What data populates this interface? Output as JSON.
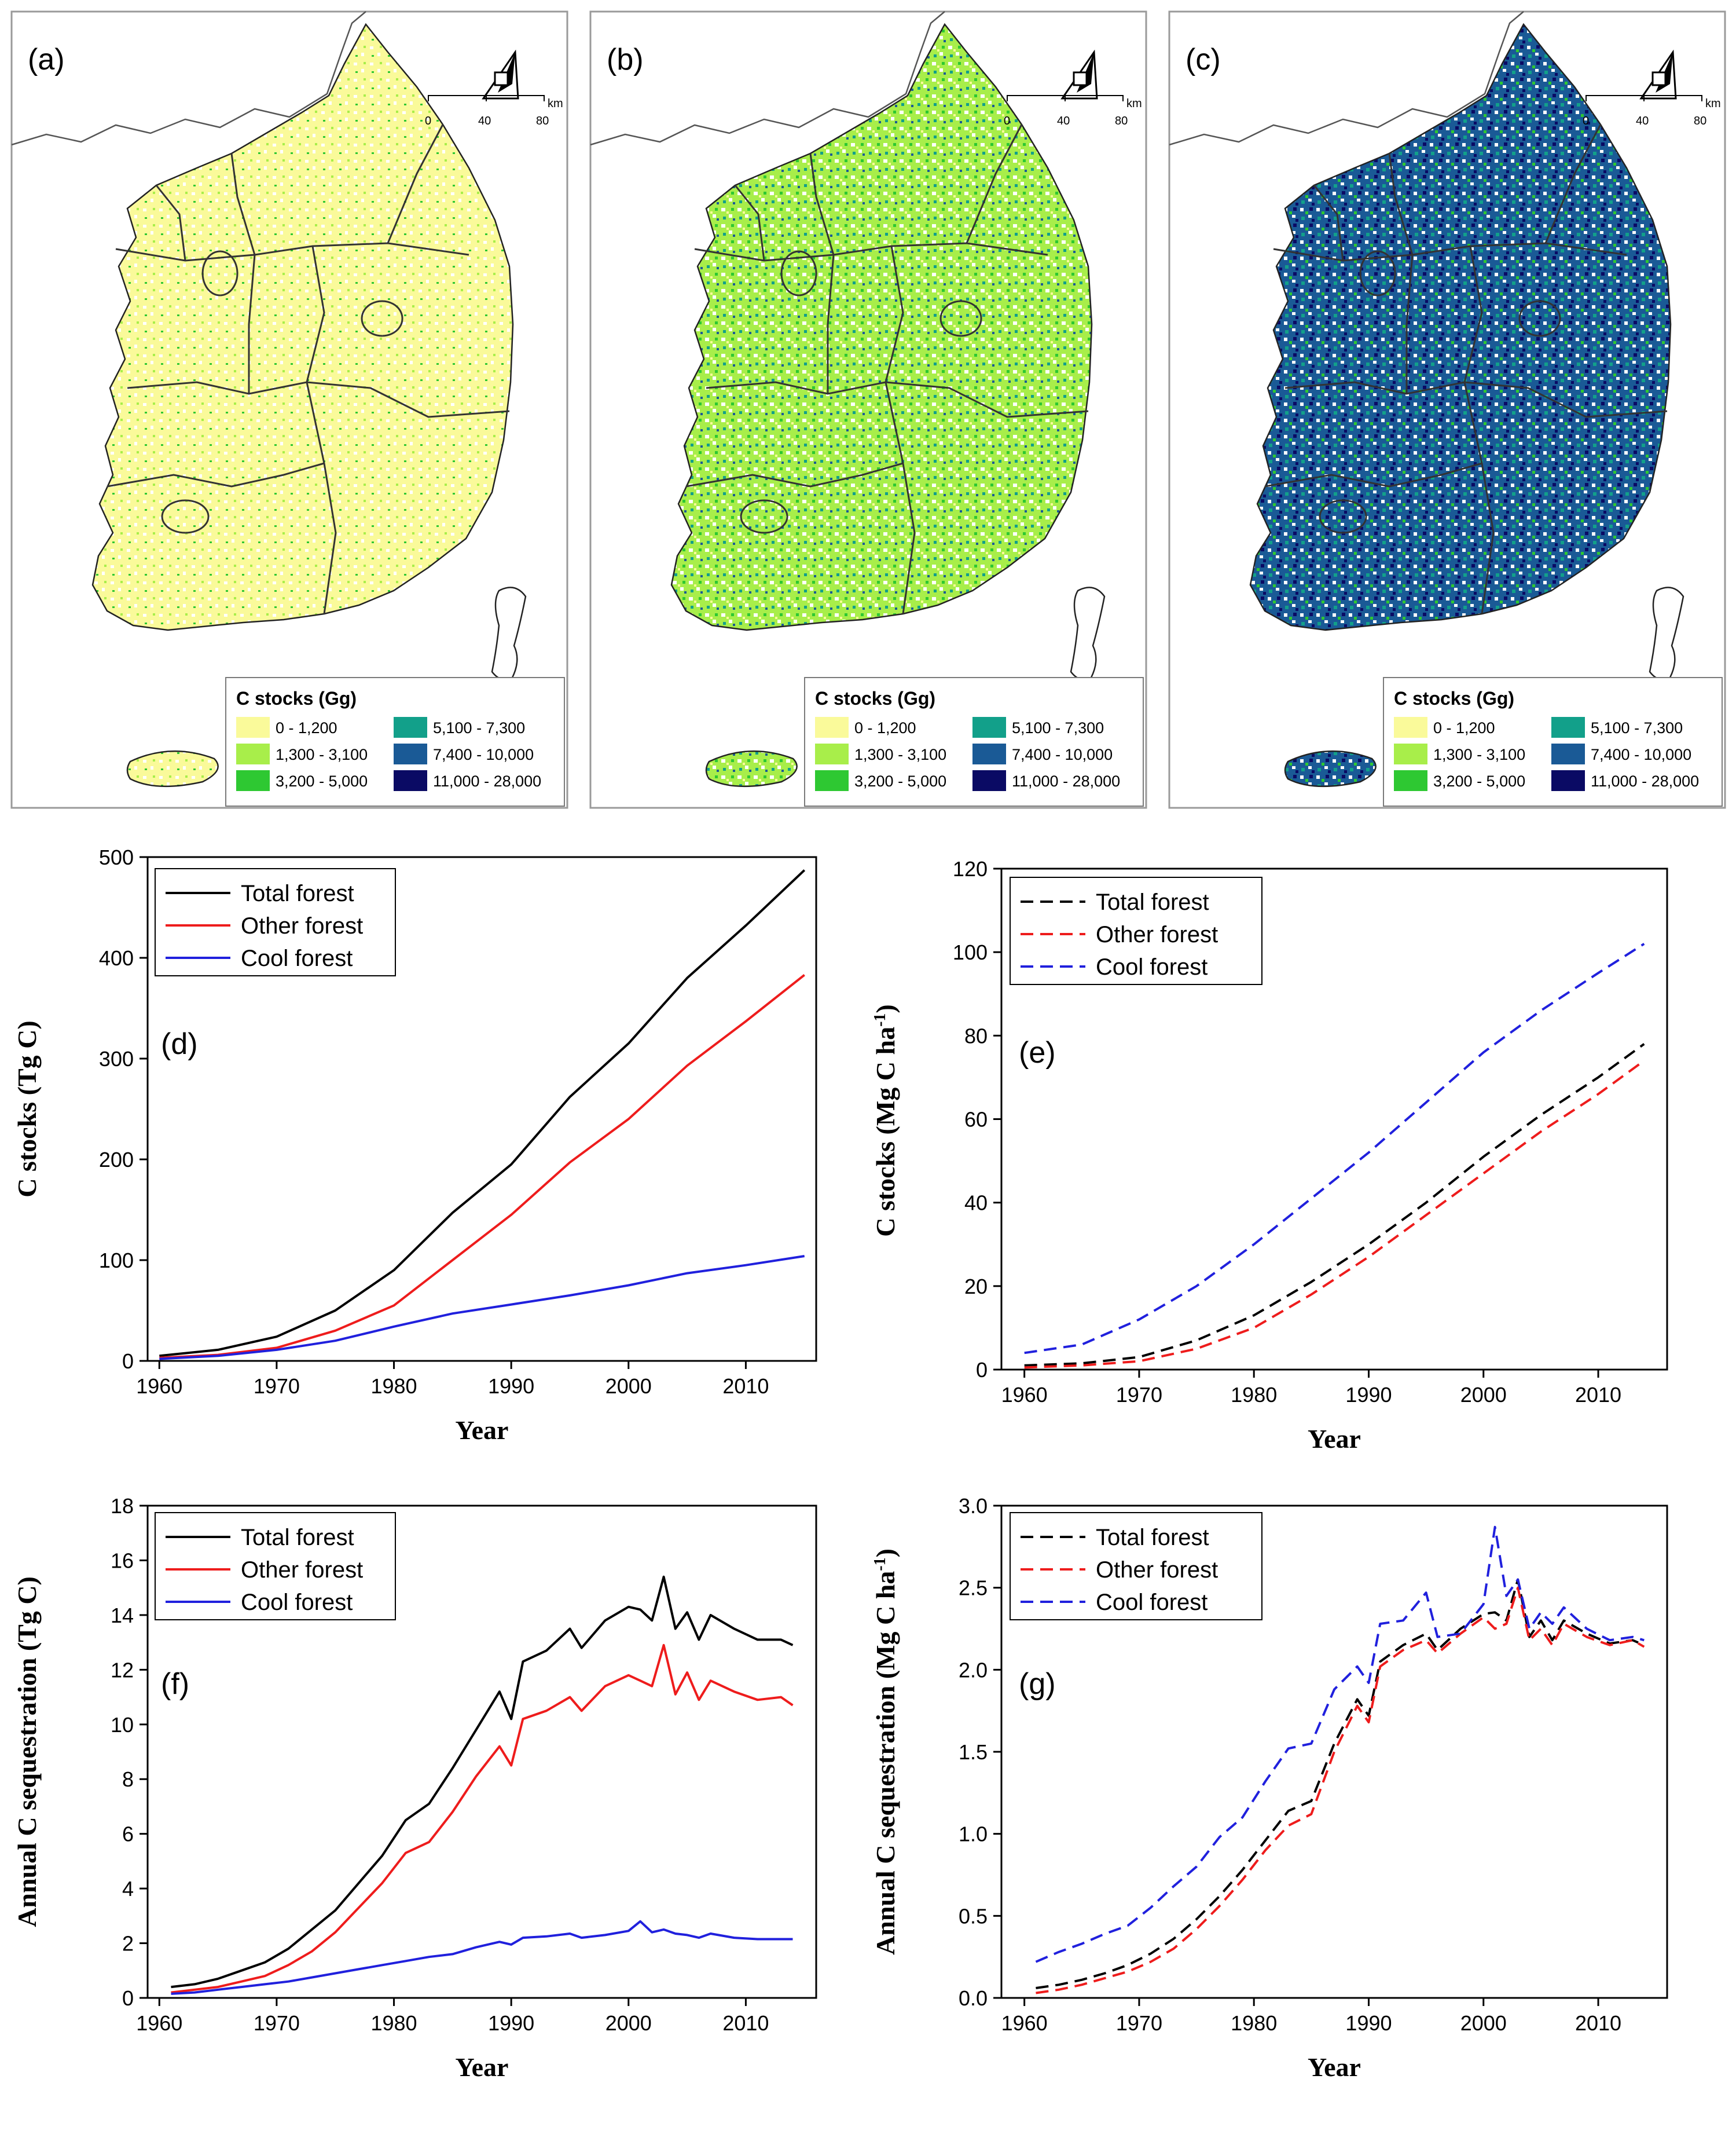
{
  "maps": [
    {
      "label": "(a)",
      "intensity": 0.15
    },
    {
      "label": "(b)",
      "intensity": 0.5
    },
    {
      "label": "(c)",
      "intensity": 0.9
    }
  ],
  "map_legend": {
    "title": "C stocks (Gg)",
    "classes": [
      {
        "label": "0 - 1,200",
        "color": "#fafa9a"
      },
      {
        "label": "1,300 - 3,100",
        "color": "#a8ee4a"
      },
      {
        "label": "3,200 - 5,000",
        "color": "#2ec832"
      },
      {
        "label": "5,100 - 7,300",
        "color": "#12a08a"
      },
      {
        "label": "7,400 - 10,000",
        "color": "#1a5a96"
      },
      {
        "label": "11,000 - 28,000",
        "color": "#0a0a64"
      }
    ]
  },
  "scale_bar": {
    "unit": "km",
    "ticks": [
      "0",
      "40",
      "80"
    ]
  },
  "chart_data": [
    {
      "type": "line",
      "label": "(d)",
      "xlabel": "Year",
      "ylabel": "C stocks (Tg C)",
      "xlim": [
        1959,
        2016
      ],
      "ylim": [
        0,
        500
      ],
      "xticks": [
        1960,
        1970,
        1980,
        1990,
        2000,
        2010
      ],
      "yticks": [
        0,
        100,
        200,
        300,
        400,
        500
      ],
      "x": [
        1960,
        1965,
        1970,
        1975,
        1980,
        1985,
        1990,
        1995,
        2000,
        2005,
        2010,
        2015
      ],
      "series": [
        {
          "name": "Total forest",
          "color": "#000000",
          "dash": false,
          "values": [
            5,
            11,
            24,
            50,
            90,
            147,
            195,
            262,
            315,
            380,
            432,
            487
          ]
        },
        {
          "name": "Other forest",
          "color": "#ee1c1c",
          "dash": false,
          "values": [
            3,
            6,
            13,
            30,
            55,
            100,
            145,
            197,
            240,
            293,
            337,
            383
          ]
        },
        {
          "name": "Cool forest",
          "color": "#2020dd",
          "dash": false,
          "values": [
            2,
            5,
            11,
            20,
            34,
            47,
            56,
            65,
            75,
            87,
            95,
            104
          ]
        }
      ]
    },
    {
      "type": "line",
      "label": "(e)",
      "xlabel": "Year",
      "ylabel": "C stocks (Mg C ha",
      "ylabel_sup": "-1",
      "ylabel_end": ")",
      "xlim": [
        1958,
        2016
      ],
      "ylim": [
        0,
        120
      ],
      "xticks": [
        1960,
        1970,
        1980,
        1990,
        2000,
        2010
      ],
      "yticks": [
        0,
        20,
        40,
        60,
        80,
        100,
        120
      ],
      "x": [
        1960,
        1965,
        1970,
        1975,
        1980,
        1985,
        1990,
        1995,
        2000,
        2005,
        2010,
        2014
      ],
      "series": [
        {
          "name": "Total forest",
          "color": "#000000",
          "dash": true,
          "values": [
            1,
            1.5,
            3,
            7,
            13,
            21,
            30,
            40,
            51,
            61,
            70,
            78
          ]
        },
        {
          "name": "Other forest",
          "color": "#ee1c1c",
          "dash": true,
          "values": [
            0.5,
            1,
            2,
            5,
            10,
            18,
            27,
            37,
            47,
            57,
            66,
            74
          ]
        },
        {
          "name": "Cool forest",
          "color": "#2020dd",
          "dash": true,
          "values": [
            4,
            6,
            12,
            20,
            30,
            41,
            52,
            64,
            76,
            86,
            95,
            102
          ]
        }
      ]
    },
    {
      "type": "line",
      "label": "(f)",
      "xlabel": "Year",
      "ylabel": "Annual C sequestration (Tg C)",
      "xlim": [
        1959,
        2016
      ],
      "ylim": [
        0,
        18
      ],
      "xticks": [
        1960,
        1970,
        1980,
        1990,
        2000,
        2010
      ],
      "yticks": [
        0,
        2,
        4,
        6,
        8,
        10,
        12,
        14,
        16,
        18
      ],
      "x": [
        1961,
        1963,
        1965,
        1967,
        1969,
        1971,
        1973,
        1975,
        1977,
        1979,
        1981,
        1983,
        1985,
        1987,
        1989,
        1990,
        1991,
        1993,
        1995,
        1996,
        1998,
        2000,
        2001,
        2002,
        2003,
        2004,
        2005,
        2006,
        2007,
        2009,
        2011,
        2013,
        2014
      ],
      "series": [
        {
          "name": "Total forest",
          "color": "#000000",
          "dash": false,
          "values": [
            0.4,
            0.5,
            0.7,
            1.0,
            1.3,
            1.8,
            2.5,
            3.2,
            4.2,
            5.2,
            6.5,
            7.1,
            8.4,
            9.8,
            11.2,
            10.2,
            12.3,
            12.7,
            13.5,
            12.8,
            13.8,
            14.3,
            14.2,
            13.8,
            15.4,
            13.5,
            14.1,
            13.1,
            14.0,
            13.5,
            13.1,
            13.1,
            12.9
          ]
        },
        {
          "name": "Other forest",
          "color": "#ee1c1c",
          "dash": false,
          "values": [
            0.2,
            0.3,
            0.4,
            0.6,
            0.8,
            1.2,
            1.7,
            2.4,
            3.3,
            4.2,
            5.3,
            5.7,
            6.8,
            8.1,
            9.2,
            8.5,
            10.2,
            10.5,
            11.0,
            10.5,
            11.4,
            11.8,
            11.6,
            11.4,
            12.9,
            11.1,
            11.9,
            10.9,
            11.6,
            11.2,
            10.9,
            11.0,
            10.7
          ]
        },
        {
          "name": "Cool forest",
          "color": "#2020dd",
          "dash": false,
          "values": [
            0.15,
            0.2,
            0.3,
            0.4,
            0.5,
            0.6,
            0.75,
            0.9,
            1.05,
            1.2,
            1.35,
            1.5,
            1.6,
            1.85,
            2.05,
            1.95,
            2.2,
            2.25,
            2.35,
            2.2,
            2.3,
            2.45,
            2.8,
            2.4,
            2.5,
            2.35,
            2.3,
            2.2,
            2.35,
            2.2,
            2.15,
            2.15,
            2.15
          ]
        }
      ]
    },
    {
      "type": "line",
      "label": "(g)",
      "xlabel": "Year",
      "ylabel": "Annual C sequestration (Mg C ha",
      "ylabel_sup": "-1",
      "ylabel_end": ")",
      "xlim": [
        1958,
        2016
      ],
      "ylim": [
        0,
        3.0
      ],
      "xticks": [
        1960,
        1970,
        1980,
        1990,
        2000,
        2010
      ],
      "yticks": [
        0.0,
        0.5,
        1.0,
        1.5,
        2.0,
        2.5,
        3.0
      ],
      "ytick_labels": [
        "0.0",
        "0.5",
        "1.0",
        "1.5",
        "2.0",
        "2.5",
        "3.0"
      ],
      "x": [
        1961,
        1963,
        1965,
        1967,
        1969,
        1971,
        1973,
        1975,
        1977,
        1979,
        1981,
        1983,
        1985,
        1987,
        1989,
        1990,
        1991,
        1993,
        1995,
        1996,
        1998,
        2000,
        2001,
        2002,
        2003,
        2004,
        2005,
        2006,
        2007,
        2009,
        2011,
        2013,
        2014
      ],
      "series": [
        {
          "name": "Total forest",
          "color": "#000000",
          "dash": true,
          "values": [
            0.06,
            0.08,
            0.11,
            0.15,
            0.2,
            0.27,
            0.36,
            0.48,
            0.62,
            0.78,
            0.96,
            1.14,
            1.2,
            1.55,
            1.82,
            1.72,
            2.05,
            2.15,
            2.22,
            2.12,
            2.25,
            2.34,
            2.35,
            2.3,
            2.55,
            2.2,
            2.3,
            2.18,
            2.3,
            2.22,
            2.16,
            2.18,
            2.15
          ]
        },
        {
          "name": "Other forest",
          "color": "#ee1c1c",
          "dash": true,
          "values": [
            0.03,
            0.05,
            0.08,
            0.12,
            0.16,
            0.22,
            0.3,
            0.42,
            0.56,
            0.72,
            0.9,
            1.05,
            1.12,
            1.5,
            1.78,
            1.68,
            2.02,
            2.12,
            2.18,
            2.1,
            2.22,
            2.32,
            2.25,
            2.28,
            2.5,
            2.18,
            2.25,
            2.15,
            2.28,
            2.2,
            2.15,
            2.18,
            2.14
          ]
        },
        {
          "name": "Cool forest",
          "color": "#2020dd",
          "dash": true,
          "values": [
            0.22,
            0.28,
            0.33,
            0.39,
            0.44,
            0.55,
            0.68,
            0.8,
            0.98,
            1.1,
            1.32,
            1.52,
            1.55,
            1.88,
            2.02,
            1.92,
            2.28,
            2.3,
            2.47,
            2.2,
            2.22,
            2.4,
            2.87,
            2.45,
            2.55,
            2.25,
            2.35,
            2.28,
            2.38,
            2.25,
            2.18,
            2.2,
            2.18
          ]
        }
      ]
    }
  ]
}
